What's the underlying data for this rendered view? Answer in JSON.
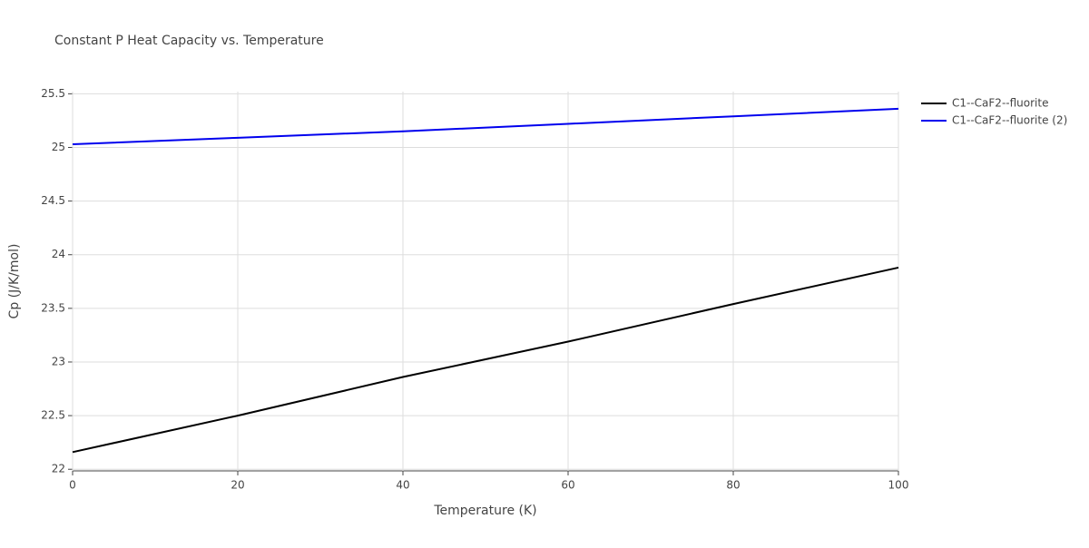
{
  "chart_data": {
    "type": "line",
    "title": "Constant P Heat Capacity vs. Temperature",
    "x_label": "Temperature (K)",
    "y_label": "Cp (J/K/mol)",
    "x": [
      0,
      20,
      40,
      60,
      80,
      100
    ],
    "series": [
      {
        "name": "C1--CaF2--fluorite",
        "color": "#000000",
        "values": [
          22.16,
          22.5,
          22.86,
          23.19,
          23.54,
          23.88
        ]
      },
      {
        "name": "C1--CaF2--fluorite (2)",
        "color": "#0000ee",
        "values": [
          25.03,
          25.09,
          25.15,
          25.22,
          25.29,
          25.36
        ]
      }
    ],
    "xlim": [
      0,
      100
    ],
    "xticks": [
      0,
      20,
      40,
      60,
      80,
      100
    ],
    "ylim": [
      21.985,
      25.52
    ],
    "yticks": [
      22,
      22.5,
      23,
      23.5,
      24,
      24.5,
      25,
      25.5
    ],
    "grid": true,
    "legend": "top-right"
  }
}
